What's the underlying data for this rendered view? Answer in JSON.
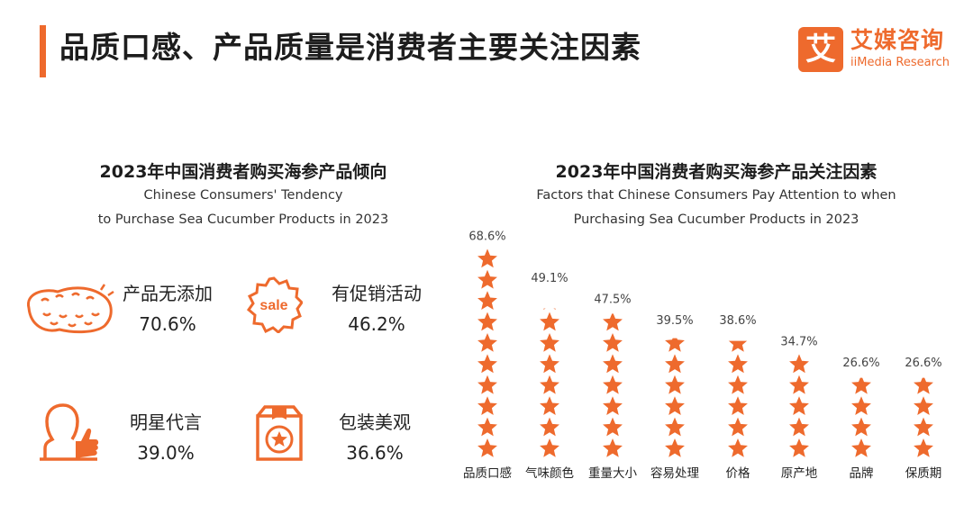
{
  "page": {
    "title": "品质口感、产品质量是消费者主要关注因素"
  },
  "logo": {
    "mark": "艾",
    "name_cn": "艾媒咨询",
    "name_en": "iiMedia Research"
  },
  "left_panel": {
    "title_cn": "2023年中国消费者购买海参产品倾向",
    "title_en_line1": "Chinese Consumers' Tendency",
    "title_en_line2": "to Purchase Sea Cucumber Products in 2023",
    "items": [
      {
        "label": "产品无添加",
        "value": "70.6%",
        "icon": "sea-cucumber-icon"
      },
      {
        "label": "有促销活动",
        "value": "46.2%",
        "icon": "sale-badge-icon"
      },
      {
        "label": "明星代言",
        "value": "39.0%",
        "icon": "celebrity-thumbs-up-icon"
      },
      {
        "label": "包装美观",
        "value": "36.6%",
        "icon": "gift-package-icon"
      }
    ]
  },
  "colors": {
    "accent": "#ee6a2d",
    "star": "#ee6a2d"
  },
  "chart_data": {
    "type": "bar",
    "title": "2023年中国消费者购买海参产品关注因素",
    "subtitle_line1": "Factors that Chinese Consumers Pay Attention to when",
    "subtitle_line2": "Purchasing Sea Cucumber Products in 2023",
    "categories": [
      "品质口感",
      "气味颜色",
      "重量大小",
      "容易处理",
      "价格",
      "原产地",
      "品牌",
      "保质期"
    ],
    "values": [
      68.6,
      49.1,
      47.5,
      39.5,
      38.6,
      34.7,
      26.6,
      26.6
    ],
    "value_labels": [
      "68.6%",
      "49.1%",
      "47.5%",
      "39.5%",
      "38.6%",
      "34.7%",
      "26.6%",
      "26.6%"
    ],
    "unit": "%",
    "mark": "star-pictograph",
    "grid": false,
    "legend": "none"
  }
}
